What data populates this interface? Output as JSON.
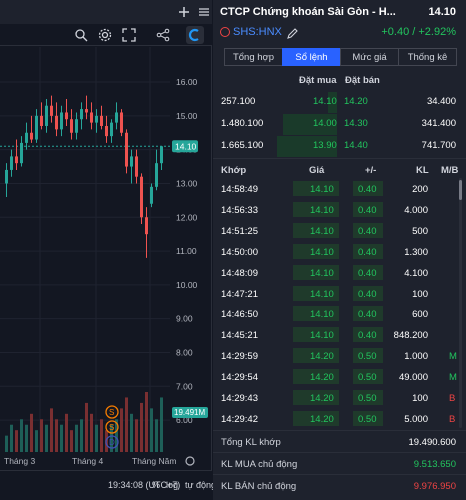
{
  "chart": {
    "price_axis": [
      "16.00",
      "15.00",
      "14.00",
      "13.00",
      "12.00",
      "11.00",
      "10.00",
      "9.00",
      "8.00",
      "7.00",
      "6.00"
    ],
    "last_price_tag": "14.10",
    "volume_tag": "19.491M",
    "month_labels": [
      "Tháng 3",
      "Tháng 4",
      "Tháng Năm"
    ],
    "footer": {
      "time": "19:34:08 (UTC+7)",
      "percent": "%",
      "log": "log",
      "auto": "tự động"
    },
    "event_markers": [
      "S",
      "S",
      "D"
    ],
    "colors": {
      "up": "#26a69a",
      "down": "#ef5350",
      "grid": "#1f2330",
      "axis_text": "#b2b5be"
    }
  },
  "chart_data": {
    "type": "candlestick",
    "ylim": [
      5.5,
      16.8
    ],
    "candles": [
      {
        "o": 13.0,
        "h": 13.6,
        "l": 12.6,
        "c": 13.4
      },
      {
        "o": 13.4,
        "h": 14.0,
        "l": 13.2,
        "c": 13.8
      },
      {
        "o": 13.8,
        "h": 14.3,
        "l": 13.4,
        "c": 13.6
      },
      {
        "o": 13.6,
        "h": 14.4,
        "l": 13.5,
        "c": 14.2
      },
      {
        "o": 14.2,
        "h": 14.8,
        "l": 14.0,
        "c": 14.5
      },
      {
        "o": 14.5,
        "h": 15.0,
        "l": 14.2,
        "c": 14.3
      },
      {
        "o": 14.3,
        "h": 15.2,
        "l": 14.2,
        "c": 15.0
      },
      {
        "o": 15.0,
        "h": 15.4,
        "l": 14.6,
        "c": 14.7
      },
      {
        "o": 14.7,
        "h": 15.5,
        "l": 14.5,
        "c": 15.3
      },
      {
        "o": 15.3,
        "h": 15.6,
        "l": 14.8,
        "c": 15.0
      },
      {
        "o": 15.0,
        "h": 15.4,
        "l": 14.4,
        "c": 14.6
      },
      {
        "o": 14.6,
        "h": 15.3,
        "l": 14.4,
        "c": 15.1
      },
      {
        "o": 15.1,
        "h": 15.5,
        "l": 14.7,
        "c": 14.9
      },
      {
        "o": 14.9,
        "h": 15.2,
        "l": 14.3,
        "c": 14.5
      },
      {
        "o": 14.5,
        "h": 15.1,
        "l": 14.3,
        "c": 14.9
      },
      {
        "o": 14.9,
        "h": 15.4,
        "l": 14.6,
        "c": 15.2
      },
      {
        "o": 15.2,
        "h": 15.6,
        "l": 14.9,
        "c": 15.1
      },
      {
        "o": 15.1,
        "h": 15.4,
        "l": 14.6,
        "c": 14.8
      },
      {
        "o": 14.8,
        "h": 15.2,
        "l": 14.5,
        "c": 15.0
      },
      {
        "o": 15.0,
        "h": 15.3,
        "l": 14.6,
        "c": 14.7
      },
      {
        "o": 14.7,
        "h": 15.0,
        "l": 14.2,
        "c": 14.4
      },
      {
        "o": 14.4,
        "h": 14.9,
        "l": 14.2,
        "c": 14.8
      },
      {
        "o": 14.8,
        "h": 15.4,
        "l": 14.6,
        "c": 15.1
      },
      {
        "o": 15.1,
        "h": 15.2,
        "l": 14.4,
        "c": 14.5
      },
      {
        "o": 14.5,
        "h": 14.6,
        "l": 13.3,
        "c": 13.5
      },
      {
        "o": 13.5,
        "h": 14.0,
        "l": 13.0,
        "c": 13.8
      },
      {
        "o": 13.8,
        "h": 14.0,
        "l": 13.0,
        "c": 13.2
      },
      {
        "o": 13.2,
        "h": 13.3,
        "l": 11.8,
        "c": 12.0
      },
      {
        "o": 12.0,
        "h": 12.3,
        "l": 10.8,
        "c": 11.5
      },
      {
        "o": 12.4,
        "h": 13.0,
        "l": 12.3,
        "c": 12.9
      },
      {
        "o": 12.9,
        "h": 14.0,
        "l": 12.8,
        "c": 13.6
      },
      {
        "o": 13.6,
        "h": 14.1,
        "l": 13.4,
        "c": 14.1
      }
    ],
    "volumes": [
      3,
      5,
      4,
      6,
      5,
      7,
      4,
      6,
      5,
      8,
      6,
      5,
      7,
      4,
      5,
      6,
      9,
      7,
      5,
      6,
      4,
      5,
      6,
      8,
      10,
      7,
      6,
      9,
      11,
      8,
      6,
      10
    ]
  },
  "detail": {
    "name": "CTCP Chứng khoán Sài Gòn - H...",
    "price": "14.10",
    "code": "SHS:HNX",
    "change": "+0.40 / +2.92%",
    "tabs": [
      "Tổng hợp",
      "Sổ lệnh",
      "Mức giá",
      "Thống kê"
    ],
    "active_tab": 1,
    "orderbook": {
      "buy_header": "Đặt mua",
      "sell_header": "Đặt bán",
      "rows": [
        {
          "bid_vol": "257.100",
          "bid": "14.10",
          "ask": "14.20",
          "ask_vol": "34.400"
        },
        {
          "bid_vol": "1.480.100",
          "bid": "14.00",
          "ask": "14.30",
          "ask_vol": "341.400"
        },
        {
          "bid_vol": "1.665.100",
          "bid": "13.90",
          "ask": "14.40",
          "ask_vol": "741.700"
        }
      ],
      "bar_fractions": [
        0.15,
        0.9,
        1.0
      ]
    },
    "matches": {
      "headers": [
        "Khớp",
        "Giá",
        "+/-",
        "KL",
        "M/B"
      ],
      "rows": [
        {
          "time": "14:58:49",
          "price": "14.10",
          "change": "0.40",
          "vol": "200",
          "side": ""
        },
        {
          "time": "14:56:33",
          "price": "14.10",
          "change": "0.40",
          "vol": "4.000",
          "side": ""
        },
        {
          "time": "14:51:25",
          "price": "14.10",
          "change": "0.40",
          "vol": "500",
          "side": ""
        },
        {
          "time": "14:50:00",
          "price": "14.10",
          "change": "0.40",
          "vol": "1.300",
          "side": ""
        },
        {
          "time": "14:48:09",
          "price": "14.10",
          "change": "0.40",
          "vol": "4.100",
          "side": ""
        },
        {
          "time": "14:47:21",
          "price": "14.10",
          "change": "0.40",
          "vol": "100",
          "side": ""
        },
        {
          "time": "14:46:50",
          "price": "14.10",
          "change": "0.40",
          "vol": "600",
          "side": ""
        },
        {
          "time": "14:45:21",
          "price": "14.10",
          "change": "0.40",
          "vol": "848.200",
          "side": ""
        },
        {
          "time": "14:29:59",
          "price": "14.20",
          "change": "0.50",
          "vol": "1.000",
          "side": "M"
        },
        {
          "time": "14:29:54",
          "price": "14.20",
          "change": "0.50",
          "vol": "49.000",
          "side": "M"
        },
        {
          "time": "14:29:43",
          "price": "14.20",
          "change": "0.50",
          "vol": "100",
          "side": "B"
        },
        {
          "time": "14:29:42",
          "price": "14.20",
          "change": "0.50",
          "vol": "5.000",
          "side": "B"
        }
      ]
    },
    "summary": {
      "total_label": "Tổng KL khớp",
      "total_value": "19.490.600",
      "buy_label": "KL MUA chủ động",
      "buy_value": "9.513.650",
      "sell_label": "KL BÁN chủ động",
      "sell_value": "9.976.950"
    }
  }
}
